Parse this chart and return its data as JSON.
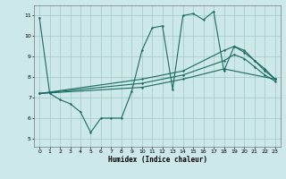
{
  "xlabel": "Humidex (Indice chaleur)",
  "bg_color": "#cce8e8",
  "grid_color": "#aacccc",
  "line_color": "#1a6b60",
  "xlim": [
    -0.5,
    23.5
  ],
  "ylim": [
    4.6,
    11.5
  ],
  "xticks": [
    0,
    1,
    2,
    3,
    4,
    5,
    6,
    7,
    8,
    9,
    10,
    11,
    12,
    13,
    14,
    15,
    16,
    17,
    18,
    19,
    20,
    21,
    22,
    23
  ],
  "yticks": [
    5,
    6,
    7,
    8,
    9,
    10,
    11
  ],
  "line1_x": [
    0,
    1,
    2,
    3,
    4,
    5,
    6,
    7,
    8,
    9,
    10,
    11,
    12,
    13,
    14,
    15,
    16,
    17,
    18,
    19,
    20,
    21,
    22,
    23
  ],
  "line1_y": [
    10.9,
    7.2,
    6.9,
    6.7,
    6.3,
    5.3,
    6.0,
    6.0,
    6.0,
    7.3,
    9.3,
    10.4,
    10.5,
    7.4,
    11.0,
    11.1,
    10.8,
    11.2,
    8.3,
    9.5,
    9.3,
    8.8,
    8.3,
    7.9
  ],
  "line2_x": [
    0,
    10,
    14,
    18,
    19,
    20,
    21,
    22,
    23
  ],
  "line2_y": [
    7.2,
    7.9,
    8.3,
    9.3,
    9.5,
    9.2,
    8.8,
    8.4,
    7.9
  ],
  "line3_x": [
    0,
    10,
    14,
    18,
    19,
    20,
    21,
    22,
    23
  ],
  "line3_y": [
    7.2,
    7.7,
    8.1,
    8.8,
    9.1,
    8.9,
    8.5,
    8.1,
    7.8
  ],
  "line4_x": [
    0,
    10,
    14,
    18,
    23
  ],
  "line4_y": [
    7.2,
    7.5,
    7.9,
    8.4,
    7.9
  ]
}
